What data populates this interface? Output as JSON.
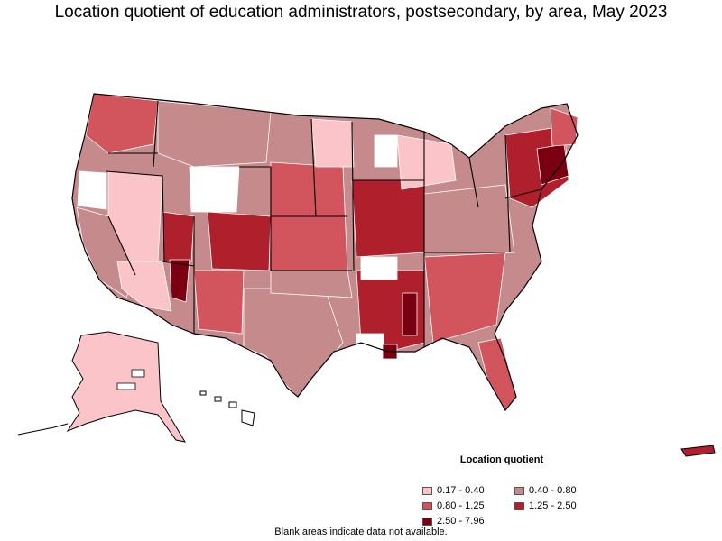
{
  "title": "Location quotient of education administrators, postsecondary, by area, May 2023",
  "legend": {
    "title": "Location quotient",
    "items": [
      {
        "label": "0.17 - 0.40",
        "color": "#fbc4c9"
      },
      {
        "label": "0.40 - 0.80",
        "color": "#c48a8c"
      },
      {
        "label": "0.80 - 1.25",
        "color": "#d2555e"
      },
      {
        "label": "1.25 - 2.50",
        "color": "#b01f2c"
      },
      {
        "label": "2.50 - 7.96",
        "color": "#7a0011"
      }
    ]
  },
  "footnote": "Blank areas indicate data not available."
}
